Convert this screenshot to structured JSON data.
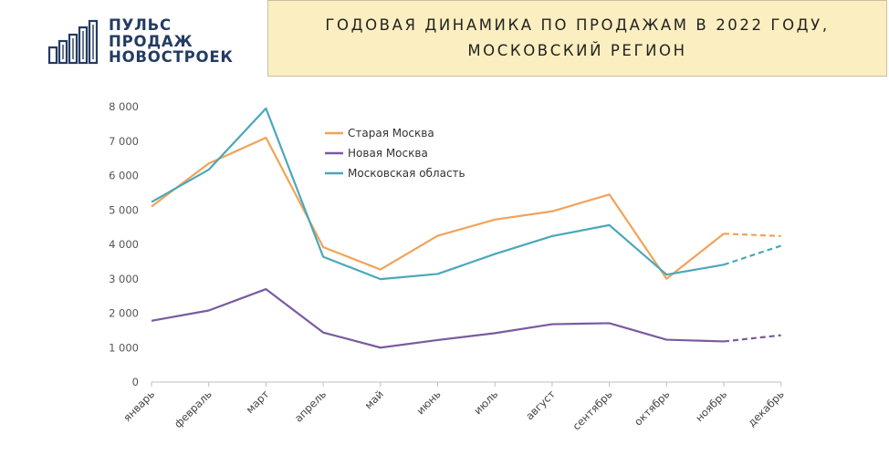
{
  "logo": {
    "line1": "ПУЛЬС",
    "line2": "ПРОДАЖ",
    "line3": "НОВОСТРОЕК",
    "icon": "bar-buildings-icon",
    "color": "#243b63"
  },
  "header": {
    "title_line1": "ГОДОВАЯ ДИНАМИКА ПО ПРОДАЖАМ В 2022 ГОДУ,",
    "title_line2": "МОСКОВСКИЙ РЕГИОН",
    "background": "#fbeec0"
  },
  "chart_data": {
    "type": "line",
    "categories": [
      "январь",
      "февраль",
      "март",
      "апрель",
      "май",
      "июнь",
      "июль",
      "август",
      "сентябрь",
      "октябрь",
      "ноябрь",
      "декабрь"
    ],
    "y_ticks": [
      0,
      1000,
      2000,
      3000,
      4000,
      5000,
      6000,
      7000,
      8000
    ],
    "y_tick_labels": [
      "0",
      "1 000",
      "2 000",
      "3 000",
      "4 000",
      "5 000",
      "6 000",
      "7 000",
      "8 000"
    ],
    "ylim": [
      0,
      8000
    ],
    "grid": false,
    "legend_position": "top-left, inside plot",
    "projected_from_category": "ноябрь",
    "series": [
      {
        "name": "Старая Москва",
        "color": "#f0a35a",
        "values": [
          5100,
          6350,
          7100,
          3920,
          3270,
          4250,
          4720,
          4960,
          5450,
          3000,
          4310,
          4240
        ]
      },
      {
        "name": "Новая Москва",
        "color": "#7a5aa0",
        "values": [
          1780,
          2080,
          2700,
          1440,
          1000,
          1220,
          1420,
          1680,
          1710,
          1230,
          1180,
          1360
        ]
      },
      {
        "name": "Московская область",
        "color": "#4aa8b8",
        "values": [
          5230,
          6170,
          7950,
          3640,
          2990,
          3140,
          3720,
          4240,
          4560,
          3120,
          3410,
          3960
        ]
      }
    ]
  }
}
